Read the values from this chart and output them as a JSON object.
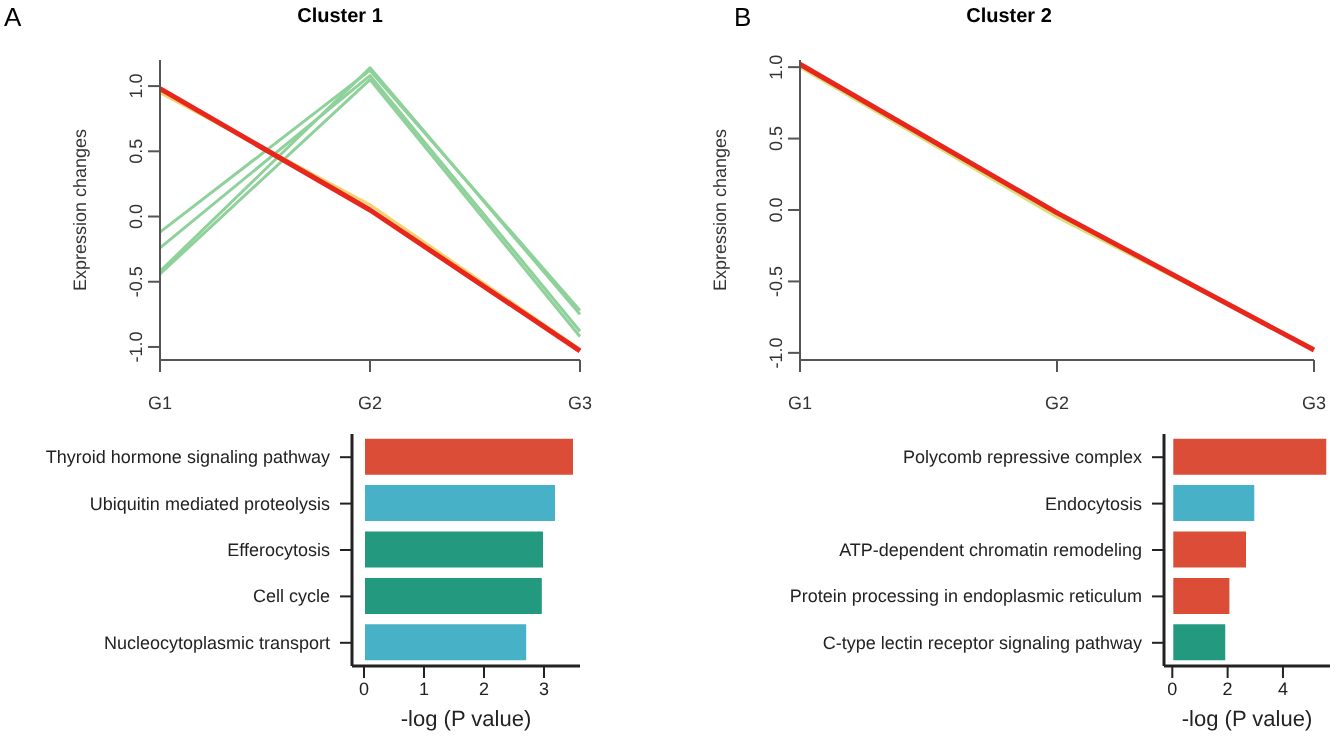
{
  "chart_data": [
    {
      "type": "line",
      "title": "Cluster 1",
      "annotations": [
        "A"
      ],
      "ylabel": "Expression changes",
      "categories": [
        "G1",
        "G2",
        "G3"
      ],
      "ylim": [
        -1.1,
        1.2
      ],
      "yticks": [
        {
          "value": -1,
          "label": "-1.0"
        },
        {
          "value": -0.5,
          "label": "-0.5"
        },
        {
          "value": 0,
          "label": "0.0"
        },
        {
          "value": 0.5,
          "label": "0.5"
        },
        {
          "value": 1,
          "label": "1.0"
        }
      ],
      "grid": false,
      "legend": false,
      "marker": "none",
      "series": [
        {
          "color": "#8fd19a",
          "values": [
            -0.12,
            1.12,
            -0.72
          ]
        },
        {
          "color": "#8fd19a",
          "values": [
            -0.24,
            1.08,
            -0.88
          ]
        },
        {
          "color": "#8fd19a",
          "values": [
            -0.42,
            1.14,
            -0.75
          ]
        },
        {
          "color": "#8fd19a",
          "values": [
            -0.44,
            1.05,
            -0.92
          ]
        },
        {
          "color": "#f5d36e",
          "values": [
            0.95,
            0.09,
            -1.02
          ]
        },
        {
          "color": "#e8261c",
          "values": [
            0.98,
            0.05,
            -1.03
          ]
        }
      ]
    },
    {
      "type": "line",
      "title": "Cluster 2",
      "annotations": [
        "B"
      ],
      "ylabel": "Expression changes",
      "categories": [
        "G1",
        "G2",
        "G3"
      ],
      "ylim": [
        -1.05,
        1.05
      ],
      "yticks": [
        {
          "value": -1,
          "label": "-1.0"
        },
        {
          "value": -0.5,
          "label": "-0.5"
        },
        {
          "value": 0,
          "label": "0.0"
        },
        {
          "value": 0.5,
          "label": "0.5"
        },
        {
          "value": 1,
          "label": "1.0"
        }
      ],
      "grid": false,
      "legend": false,
      "marker": "none",
      "series": [
        {
          "color": "#d9e07a",
          "values": [
            1.0,
            -0.05,
            -0.97
          ]
        },
        {
          "color": "#e8261c",
          "values": [
            1.02,
            -0.02,
            -0.98
          ]
        }
      ]
    },
    {
      "type": "bar",
      "orientation": "horizontal",
      "xlabel": "-log (P value)",
      "categories": [
        "Thyroid hormone signaling pathway",
        "Ubiquitin mediated proteolysis",
        "Efferocytosis",
        "Cell cycle",
        "Nucleocytoplasmic transport"
      ],
      "values": [
        3.5,
        3.2,
        3.0,
        2.98,
        2.72
      ],
      "colors": [
        "#db4d37",
        "#47b1c8",
        "#239a7f",
        "#239a7f",
        "#47b1c8"
      ],
      "xlim": [
        -0.2,
        3.6
      ],
      "xticks": [
        0,
        1,
        2,
        3
      ],
      "grid": false,
      "legend": false
    },
    {
      "type": "bar",
      "orientation": "horizontal",
      "xlabel": "-log (P value)",
      "categories": [
        "Polycomb repressive complex",
        "Endocytosis",
        "ATP-dependent chromatin remodeling",
        "Protein processing in endoplasmic reticulum",
        "C-type lectin receptor signaling pathway"
      ],
      "values": [
        5.6,
        3.0,
        2.7,
        2.1,
        1.95
      ],
      "colors": [
        "#db4d37",
        "#47b1c8",
        "#db4d37",
        "#db4d37",
        "#239a7f"
      ],
      "xlim": [
        -0.3,
        5.7
      ],
      "xticks": [
        0,
        2,
        4
      ],
      "grid": false,
      "legend": false
    }
  ]
}
